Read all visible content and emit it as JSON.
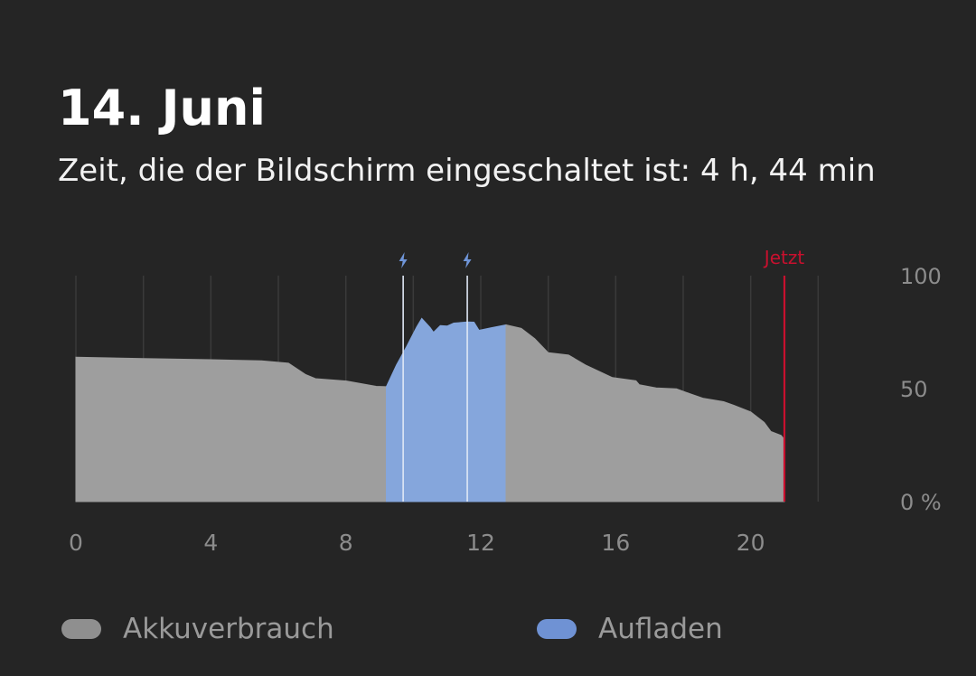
{
  "header": {
    "date": "14. Juni",
    "screen_time": "Zeit, die der Bildschirm eingeschaltet ist: 4 h, 44 min"
  },
  "chart_data": {
    "type": "area",
    "title": "",
    "xlabel": "",
    "ylabel": "",
    "xlim": [
      0,
      24
    ],
    "ylim": [
      0,
      100
    ],
    "x_ticks": [
      "0",
      "4",
      "8",
      "12",
      "16",
      "20"
    ],
    "y_ticks": [
      "100",
      "50",
      "0 %"
    ],
    "grid": true,
    "now_label": "Jetzt",
    "now_x": 21.0,
    "charge_markers_x": [
      9.7,
      11.6
    ],
    "legend_position": "bottom",
    "series": [
      {
        "name": "Akkuverbrauch",
        "color": "#9e9e9e",
        "points": [
          [
            0,
            63.9
          ],
          [
            2,
            63.3
          ],
          [
            4,
            62.8
          ],
          [
            5.5,
            62.3
          ],
          [
            6.3,
            61.3
          ],
          [
            6.8,
            56.3
          ],
          [
            7.1,
            54.4
          ],
          [
            8,
            53.4
          ],
          [
            8.9,
            51.0
          ],
          [
            9.2,
            50.9
          ]
        ]
      },
      {
        "name": "Aufladen",
        "color": "#85a6dc",
        "points": [
          [
            9.2,
            50.9
          ],
          [
            9.5,
            60.5
          ],
          [
            9.8,
            68.6
          ],
          [
            10.1,
            77.3
          ],
          [
            10.25,
            81.1
          ],
          [
            10.5,
            77.0
          ],
          [
            10.6,
            74.9
          ],
          [
            10.8,
            77.9
          ],
          [
            11,
            77.7
          ],
          [
            11.2,
            79.0
          ],
          [
            11.6,
            79.5
          ],
          [
            11.8,
            79.4
          ],
          [
            11.95,
            75.8
          ],
          [
            12.3,
            76.9
          ],
          [
            12.75,
            78.2
          ]
        ]
      },
      {
        "name": "Akkuverbrauch",
        "color": "#9e9e9e",
        "points": [
          [
            12.75,
            78.2
          ],
          [
            13.2,
            76.7
          ],
          [
            13.6,
            72.1
          ],
          [
            14,
            65.9
          ],
          [
            14.6,
            64.9
          ],
          [
            15.1,
            60.5
          ],
          [
            15.9,
            54.9
          ],
          [
            16.6,
            53.5
          ],
          [
            16.7,
            51.7
          ],
          [
            17.2,
            50.3
          ],
          [
            17.8,
            49.9
          ],
          [
            18.1,
            48.3
          ],
          [
            18.6,
            45.7
          ],
          [
            19.2,
            44.2
          ],
          [
            19.5,
            42.6
          ],
          [
            20,
            39.7
          ],
          [
            20.4,
            35.1
          ],
          [
            20.6,
            31.0
          ],
          [
            20.9,
            29.3
          ],
          [
            21.0,
            27.5
          ]
        ]
      }
    ],
    "legend": [
      {
        "label": "Akkuverbrauch",
        "color": "#9e9e9e"
      },
      {
        "label": "Aufladen",
        "color": "#85a6dc"
      }
    ]
  },
  "colors": {
    "background": "#252525",
    "grid": "#3a3a3a",
    "axis_text": "#8c8c8c",
    "now_line": "#c8102e",
    "charge_marker": "#6f95d8",
    "legend_grey": "#8f8f8f",
    "legend_blue": "#6f92d4"
  },
  "icons": {
    "charge_marker": "lightning-bolt-icon"
  },
  "legend": {
    "usage_label": "Akkuverbrauch",
    "charging_label": "Aufladen"
  }
}
